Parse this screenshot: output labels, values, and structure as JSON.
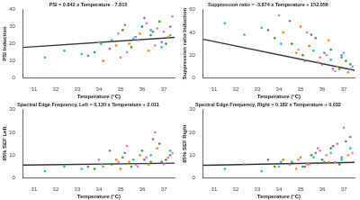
{
  "chart_data": [
    {
      "type": "scatter",
      "title": "PSI = 0.842 x Temperature - 7.815",
      "x_label": "Temperature (°C)",
      "y_label": "PSI Induction",
      "xlim": [
        30.5,
        37.5
      ],
      "xticks": [
        31,
        32,
        33,
        34,
        35,
        36,
        37
      ],
      "ylim": [
        0,
        40
      ],
      "yticks": [
        0,
        10,
        20,
        30,
        40
      ],
      "grid": false,
      "series": [
        {
          "color": "#2ca02c",
          "x": [
            34.6,
            35.1,
            35.5,
            36.0,
            36.4,
            36.8,
            37.1,
            33.8
          ],
          "values": [
            22,
            28,
            18,
            30,
            25,
            33,
            20,
            15
          ]
        },
        {
          "color": "#ff7f0e",
          "x": [
            35.0,
            35.4,
            35.9,
            36.3,
            36.7,
            37.2,
            34.2,
            34.8
          ],
          "values": [
            12,
            20,
            26,
            16,
            29,
            24,
            10,
            19
          ]
        },
        {
          "color": "#9467bd",
          "x": [
            35.2,
            35.7,
            36.1,
            36.5,
            36.9,
            37.3,
            34.5,
            33.5
          ],
          "values": [
            31,
            24,
            35,
            27,
            21,
            30,
            17,
            13
          ]
        },
        {
          "color": "#e377c2",
          "x": [
            34.9,
            35.3,
            35.8,
            36.2,
            36.6,
            37.0,
            37.4,
            34.0
          ],
          "values": [
            26,
            15,
            22,
            32,
            19,
            27,
            36,
            21
          ]
        },
        {
          "color": "#17becf",
          "x": [
            31.5,
            32.4,
            33.2,
            34.1,
            35.6,
            36.4,
            36.9,
            37.3
          ],
          "values": [
            12,
            16,
            14,
            20,
            23,
            28,
            18,
            25
          ]
        }
      ],
      "fit": {
        "color": "#333333",
        "line_style": "solid",
        "x": [
          30.5,
          37.5
        ],
        "values": [
          17.87,
          23.76
        ]
      }
    },
    {
      "type": "scatter",
      "title": "Suppression ratio = -3.874 x Temperature + 152.056",
      "x_label": "Temperature (°C)",
      "y_label": "Suppression ratio Induction",
      "xlim": [
        30.5,
        37.5
      ],
      "xticks": [
        31,
        32,
        33,
        34,
        35,
        36,
        37
      ],
      "ylim": [
        0,
        60
      ],
      "yticks": [
        0,
        20,
        40,
        60
      ],
      "grid": false,
      "series": [
        {
          "color": "#2ca02c",
          "x": [
            34.6,
            35.1,
            35.5,
            36.0,
            36.4,
            36.8,
            37.1,
            33.8
          ],
          "values": [
            30,
            20,
            38,
            12,
            25,
            8,
            15,
            35
          ]
        },
        {
          "color": "#ff7f0e",
          "x": [
            35.0,
            35.4,
            35.9,
            36.3,
            36.7,
            37.2,
            34.2,
            34.8
          ],
          "values": [
            45,
            28,
            18,
            33,
            10,
            5,
            40,
            22
          ]
        },
        {
          "color": "#9467bd",
          "x": [
            35.2,
            35.7,
            36.1,
            36.5,
            36.9,
            37.3,
            34.5,
            33.5
          ],
          "values": [
            15,
            35,
            22,
            8,
            18,
            12,
            50,
            42
          ]
        },
        {
          "color": "#e377c2",
          "x": [
            34.9,
            35.3,
            35.8,
            36.2,
            36.6,
            37.0,
            37.4,
            34.0
          ],
          "values": [
            25,
            40,
            14,
            20,
            6,
            22,
            10,
            55
          ]
        },
        {
          "color": "#17becf",
          "x": [
            31.5,
            32.4,
            33.2,
            34.1,
            35.6,
            36.4,
            36.9,
            37.3
          ],
          "values": [
            48,
            38,
            44,
            30,
            24,
            16,
            20,
            8
          ]
        }
      ],
      "fit": {
        "color": "#333333",
        "line_style": "solid",
        "x": [
          30.5,
          37.5
        ],
        "values": [
          33.9,
          6.78
        ]
      }
    },
    {
      "type": "scatter",
      "title": "Spectral Edge Frequency, Left = 0.120 x Temperature + 2.011",
      "x_label": "Temperature (°C)",
      "y_label": "95% SEF Left",
      "xlim": [
        30.5,
        37.5
      ],
      "xticks": [
        31,
        32,
        33,
        34,
        35,
        36,
        37
      ],
      "ylim": [
        0,
        30
      ],
      "yticks": [
        0,
        10,
        20,
        30
      ],
      "grid": false,
      "series": [
        {
          "color": "#2ca02c",
          "x": [
            34.6,
            35.1,
            35.5,
            36.0,
            36.4,
            36.8,
            37.1,
            33.8
          ],
          "values": [
            6,
            9,
            5,
            12,
            7,
            15,
            8,
            4
          ]
        },
        {
          "color": "#ff7f0e",
          "x": [
            35.0,
            35.4,
            35.9,
            36.3,
            36.7,
            37.2,
            34.2,
            34.8
          ],
          "values": [
            4,
            7,
            10,
            6,
            13,
            9,
            5,
            8
          ]
        },
        {
          "color": "#9467bd",
          "x": [
            35.2,
            35.7,
            36.1,
            36.5,
            36.9,
            37.3,
            34.5,
            33.5
          ],
          "values": [
            11,
            6,
            8,
            17,
            7,
            10,
            12,
            5
          ]
        },
        {
          "color": "#e377c2",
          "x": [
            34.9,
            35.3,
            35.8,
            36.2,
            36.6,
            37.0,
            37.4,
            34.0
          ],
          "values": [
            7,
            14,
            5,
            9,
            20,
            6,
            11,
            8
          ]
        },
        {
          "color": "#17becf",
          "x": [
            31.5,
            32.4,
            33.2,
            34.1,
            35.6,
            36.4,
            36.9,
            37.3
          ],
          "values": [
            3,
            5,
            4,
            6,
            8,
            10,
            7,
            12
          ]
        }
      ],
      "fit": {
        "color": "#333333",
        "line_style": "solid",
        "x": [
          30.5,
          37.5
        ],
        "values": [
          5.67,
          6.51
        ]
      }
    },
    {
      "type": "scatter",
      "title": "Spectral Edge Frequency, Right = 0.182 x Temperature + 0.032",
      "x_label": "Temperature (°C)",
      "y_label": "95% SEF Right",
      "xlim": [
        30.5,
        37.5
      ],
      "xticks": [
        31,
        32,
        33,
        34,
        35,
        36,
        37
      ],
      "ylim": [
        0,
        30
      ],
      "yticks": [
        0,
        10,
        20,
        30
      ],
      "grid": false,
      "series": [
        {
          "color": "#2ca02c",
          "x": [
            34.6,
            35.1,
            35.5,
            36.0,
            36.4,
            36.8,
            37.1,
            33.8
          ],
          "values": [
            7,
            5,
            10,
            8,
            13,
            6,
            16,
            5
          ]
        },
        {
          "color": "#ff7f0e",
          "x": [
            35.0,
            35.4,
            35.9,
            36.3,
            36.7,
            37.2,
            34.2,
            34.8
          ],
          "values": [
            9,
            6,
            12,
            7,
            15,
            10,
            8,
            4
          ]
        },
        {
          "color": "#9467bd",
          "x": [
            35.2,
            35.7,
            36.1,
            36.5,
            36.9,
            37.3,
            34.5,
            33.5
          ],
          "values": [
            5,
            11,
            7,
            14,
            9,
            18,
            6,
            8
          ]
        },
        {
          "color": "#e377c2",
          "x": [
            34.9,
            35.3,
            35.8,
            36.2,
            36.6,
            37.0,
            37.4,
            34.0
          ],
          "values": [
            8,
            6,
            13,
            10,
            7,
            22,
            11,
            5
          ]
        },
        {
          "color": "#17becf",
          "x": [
            31.5,
            32.4,
            33.2,
            34.1,
            35.6,
            36.4,
            36.9,
            37.3
          ],
          "values": [
            4,
            6,
            3,
            7,
            9,
            11,
            8,
            13
          ]
        }
      ],
      "fit": {
        "color": "#333333",
        "line_style": "solid",
        "x": [
          30.5,
          37.5
        ],
        "values": [
          5.58,
          6.86
        ]
      }
    }
  ]
}
